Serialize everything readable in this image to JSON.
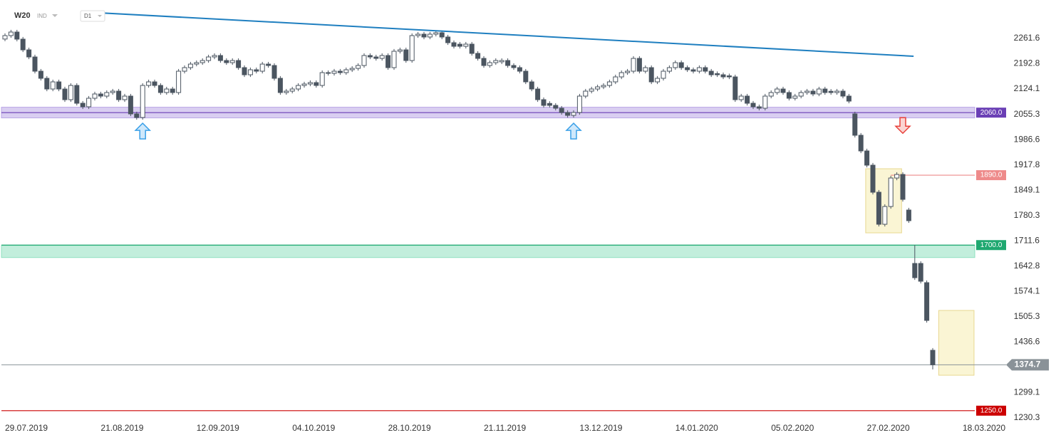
{
  "chart_data": {
    "type": "candlestick",
    "title": "W20",
    "market": "IND",
    "interval": "D1",
    "categories": [
      "29.07.2019",
      null,
      null,
      null,
      null,
      null,
      null,
      null,
      null,
      null,
      null,
      null,
      null,
      null,
      null,
      null,
      "21.08.2019",
      null,
      null,
      null,
      null,
      null,
      null,
      null,
      null,
      null,
      null,
      null,
      null,
      null,
      null,
      null,
      "12.09.2019",
      null,
      null,
      null,
      null,
      null,
      null,
      null,
      null,
      null,
      null,
      null,
      null,
      null,
      null,
      null,
      "04.10.2019",
      null,
      null,
      null,
      null,
      null,
      null,
      null,
      null,
      null,
      null,
      null,
      null,
      null,
      null,
      null,
      "28.10.2019",
      null,
      null,
      null,
      null,
      null,
      null,
      null,
      null,
      null,
      null,
      null,
      null,
      null,
      null,
      null,
      "21.11.2019",
      null,
      null,
      null,
      null,
      null,
      null,
      null,
      null,
      null,
      null,
      null,
      null,
      null,
      null,
      null,
      "13.12.2019",
      null,
      null,
      null,
      null,
      null,
      null,
      null,
      null,
      null,
      null,
      null,
      null,
      null,
      null,
      null,
      "14.01.2020",
      null,
      null,
      null,
      null,
      null,
      null,
      null,
      null,
      null,
      null,
      null,
      null,
      null,
      null,
      null,
      "05.02.2020",
      null,
      null,
      null,
      null,
      null,
      null,
      null,
      null,
      null,
      null,
      null,
      null,
      null,
      null,
      null,
      "27.02.2020",
      null,
      null,
      null,
      null,
      null,
      null,
      null,
      null,
      null,
      null,
      null,
      null,
      null,
      null,
      null,
      "18.03.2020"
    ],
    "open": [
      2260.0,
      2269.3,
      2279.0,
      2259.7,
      2230.6,
      2211.3,
      2172.6,
      2153.3,
      2124.2,
      2143.6,
      2124.2,
      2095.2,
      2133.9,
      2085.5,
      2075.9,
      2099.1,
      2110.7,
      2104.9,
      2114.6,
      2118.4,
      2095.2,
      2104.9,
      2056.5,
      2046.8,
      2133.9,
      2143.6,
      2133.9,
      2114.6,
      2124.2,
      2114.6,
      2172.6,
      2182.3,
      2191.9,
      2195.8,
      2201.6,
      2211.3,
      2215.2,
      2201.6,
      2195.8,
      2201.6,
      2182.3,
      2162.9,
      2176.5,
      2172.6,
      2191.9,
      2188.1,
      2153.3,
      2114.6,
      2118.4,
      2124.2,
      2133.9,
      2137.8,
      2141.6,
      2133.9,
      2168.7,
      2166.8,
      2172.6,
      2168.7,
      2176.5,
      2180.3,
      2188.1,
      2215.2,
      2211.3,
      2207.4,
      2215.2,
      2182.3,
      2226.8,
      2230.6,
      2201.6,
      2269.3,
      2273.2,
      2265.5,
      2273.2,
      2277.1,
      2265.5,
      2250.0,
      2246.0,
      2240.3,
      2246.1,
      2221.0,
      2207.4,
      2188.1,
      2195.8,
      2198.0,
      2201.6,
      2188.1,
      2182.3,
      2172.6,
      2143.6,
      2124.2,
      2095.2,
      2085.0,
      2079.7,
      2072.0,
      2060.4,
      2052.6,
      2060.4,
      2104.9,
      2118.4,
      2124.2,
      2130.0,
      2133.9,
      2143.6,
      2157.1,
      2168.7,
      2172.6,
      2207.4,
      2172.6,
      2182.3,
      2143.6,
      2153.3,
      2172.6,
      2182.3,
      2195.8,
      2182.3,
      2176.5,
      2172.6,
      2182.3,
      2172.6,
      2166.0,
      2162.9,
      2160.0,
      2157.1,
      2095.2,
      2104.9,
      2085.5,
      2075.9,
      2072.0,
      2104.9,
      2114.6,
      2124.2,
      2114.6,
      2099.1,
      2104.9,
      2114.6,
      2118.4,
      2110.7,
      2124.2,
      2118.0,
      2114.6,
      2118.4,
      2104.9,
      2056.5,
      1998.5,
      1955.9,
      1917.2,
      1843.7,
      1756.6,
      1804.9,
      1882.3,
      1892.0,
      1795.3,
      1650.1,
      1650.1,
      1597.9,
      1414.1,
      null,
      null,
      null,
      null,
      null
    ],
    "high": [
      2275.3,
      2285.0,
      2285.0,
      2265.7,
      2236.6,
      2217.3,
      2178.6,
      2159.3,
      2149.6,
      2149.6,
      2130.2,
      2139.9,
      2139.9,
      2091.5,
      2105.1,
      2116.7,
      2116.7,
      2120.6,
      2124.4,
      2124.4,
      2110.9,
      2110.9,
      2062.5,
      2139.9,
      2149.6,
      2149.6,
      2139.9,
      2130.2,
      2130.2,
      2178.6,
      2188.3,
      2197.9,
      2201.8,
      2207.6,
      2217.3,
      2221.2,
      2221.2,
      2207.6,
      2207.6,
      2207.6,
      2188.3,
      2182.5,
      2182.5,
      2197.9,
      2197.9,
      2194.1,
      2159.3,
      2124.4,
      2130.2,
      2139.9,
      2143.8,
      2147.6,
      2147.6,
      2174.7,
      2174.7,
      2178.6,
      2178.6,
      2182.5,
      2186.3,
      2194.1,
      2221.2,
      2221.2,
      2217.3,
      2221.2,
      2221.2,
      2232.8,
      2236.6,
      2236.6,
      2275.3,
      2279.2,
      2279.2,
      2279.2,
      2283.1,
      2283.1,
      2271.5,
      2256.0,
      2252.0,
      2252.1,
      2252.1,
      2227.0,
      2213.4,
      2201.8,
      2207.6,
      2207.6,
      2207.6,
      2194.1,
      2188.3,
      2178.6,
      2149.6,
      2130.2,
      2101.2,
      2091.0,
      2085.7,
      2078.0,
      2066.4,
      2066.4,
      2110.9,
      2124.4,
      2130.2,
      2136.0,
      2139.9,
      2149.6,
      2163.1,
      2174.7,
      2178.6,
      2213.4,
      2213.4,
      2188.3,
      2188.3,
      2159.3,
      2178.6,
      2188.3,
      2201.8,
      2201.8,
      2188.3,
      2182.5,
      2188.3,
      2188.3,
      2178.6,
      2172.0,
      2168.9,
      2166.0,
      2163.1,
      2110.9,
      2110.9,
      2091.5,
      2081.9,
      2110.9,
      2120.6,
      2130.2,
      2130.2,
      2120.6,
      2110.9,
      2120.6,
      2124.4,
      2124.4,
      2130.2,
      2130.2,
      2124.0,
      2124.4,
      2124.4,
      2110.9,
      2062.5,
      2004.5,
      1961.9,
      1923.2,
      1849.7,
      1810.9,
      1888.3,
      1898.0,
      1898.0,
      1801.3,
      1700.0,
      1656.1,
      1603.9,
      1420.1,
      null,
      null,
      null,
      null,
      null
    ],
    "low": [
      2254.0,
      2263.3,
      2253.7,
      2224.6,
      2205.3,
      2166.6,
      2147.3,
      2118.2,
      2118.2,
      2118.2,
      2089.2,
      2089.2,
      2079.5,
      2069.9,
      2069.9,
      2093.1,
      2098.9,
      2098.9,
      2108.6,
      2089.2,
      2089.2,
      2050.5,
      2040.8,
      2040.8,
      2127.9,
      2127.9,
      2108.6,
      2108.6,
      2108.6,
      2108.6,
      2166.6,
      2176.3,
      2185.9,
      2189.8,
      2195.6,
      2205.3,
      2195.6,
      2189.8,
      2189.8,
      2176.3,
      2156.9,
      2156.9,
      2166.6,
      2166.6,
      2182.1,
      2147.3,
      2108.6,
      2108.6,
      2112.4,
      2118.2,
      2127.9,
      2131.8,
      2127.9,
      2127.9,
      2160.8,
      2160.8,
      2162.7,
      2162.7,
      2170.5,
      2174.3,
      2182.1,
      2205.3,
      2201.4,
      2201.4,
      2176.3,
      2176.3,
      2220.8,
      2195.6,
      2195.6,
      2263.3,
      2259.5,
      2259.5,
      2267.2,
      2259.5,
      2244.0,
      2234.3,
      2234.3,
      2234.3,
      2215.0,
      2201.4,
      2182.1,
      2182.1,
      2189.8,
      2192.0,
      2182.1,
      2176.3,
      2166.6,
      2137.6,
      2118.2,
      2089.2,
      2073.7,
      2073.7,
      2066.0,
      2054.4,
      2046.6,
      2046.6,
      2054.4,
      2098.9,
      2112.4,
      2118.2,
      2124.0,
      2127.9,
      2137.6,
      2151.1,
      2162.7,
      2166.6,
      2166.6,
      2166.6,
      2137.6,
      2137.6,
      2147.3,
      2166.6,
      2176.3,
      2176.3,
      2170.5,
      2166.6,
      2166.6,
      2166.6,
      2156.9,
      2156.9,
      2151.1,
      2151.1,
      2089.2,
      2089.2,
      2079.5,
      2069.9,
      2066.0,
      2066.0,
      2098.9,
      2108.6,
      2108.6,
      2093.1,
      2093.1,
      2098.9,
      2108.6,
      2104.7,
      2104.7,
      2108.6,
      2108.6,
      2108.6,
      2098.9,
      2085.3,
      1992.5,
      1949.9,
      1911.2,
      1837.7,
      1750.6,
      1750.6,
      1798.9,
      1876.3,
      1818.3,
      1760.3,
      1605.4,
      1595.8,
      1489.3,
      1362.0,
      null,
      null,
      null,
      null,
      null
    ],
    "close": [
      2269.3,
      2279.0,
      2259.7,
      2230.6,
      2211.3,
      2172.6,
      2153.3,
      2124.2,
      2143.6,
      2124.2,
      2095.2,
      2133.9,
      2085.5,
      2075.9,
      2099.1,
      2110.7,
      2104.9,
      2114.6,
      2118.4,
      2095.2,
      2104.9,
      2056.5,
      2046.8,
      2133.9,
      2143.6,
      2133.9,
      2114.6,
      2124.2,
      2114.6,
      2172.6,
      2182.3,
      2191.9,
      2195.8,
      2201.6,
      2211.3,
      2215.2,
      2201.6,
      2195.8,
      2201.6,
      2182.3,
      2162.9,
      2176.5,
      2172.6,
      2191.9,
      2188.1,
      2153.3,
      2114.6,
      2118.4,
      2124.2,
      2133.9,
      2137.8,
      2141.6,
      2133.9,
      2168.7,
      2166.8,
      2172.6,
      2168.7,
      2176.5,
      2180.3,
      2188.1,
      2215.2,
      2211.3,
      2207.4,
      2215.2,
      2182.3,
      2226.8,
      2230.6,
      2201.6,
      2269.3,
      2273.2,
      2265.5,
      2273.2,
      2277.1,
      2265.5,
      2250.0,
      2240.3,
      2240.3,
      2246.1,
      2221.0,
      2207.4,
      2188.1,
      2195.8,
      2201.6,
      2201.6,
      2188.1,
      2182.3,
      2172.6,
      2143.6,
      2124.2,
      2095.2,
      2079.7,
      2079.7,
      2072.0,
      2060.4,
      2052.6,
      2060.4,
      2104.9,
      2118.4,
      2124.2,
      2130.0,
      2133.9,
      2143.6,
      2157.1,
      2168.7,
      2172.6,
      2207.4,
      2172.6,
      2182.3,
      2143.6,
      2153.3,
      2172.6,
      2182.3,
      2195.8,
      2182.3,
      2176.5,
      2172.6,
      2182.3,
      2172.6,
      2162.9,
      2162.9,
      2157.1,
      2157.1,
      2095.2,
      2104.9,
      2085.5,
      2075.9,
      2072.0,
      2104.9,
      2114.6,
      2124.2,
      2114.6,
      2099.1,
      2104.9,
      2114.6,
      2118.4,
      2110.7,
      2124.2,
      2114.6,
      2114.6,
      2118.4,
      2104.9,
      2091.3,
      1998.5,
      1955.9,
      1917.2,
      1843.7,
      1756.6,
      1804.9,
      1882.3,
      1892.0,
      1824.3,
      1766.3,
      1611.4,
      1601.8,
      1495.3,
      1374.7,
      null,
      null,
      null,
      null,
      null
    ],
    "up_color": "#ffffff",
    "down_color": "#4b5560",
    "ylim": [
      1220.6,
      2366.1
    ],
    "yticks": [
      2261.6,
      2192.8,
      2124.1,
      2055.3,
      1986.6,
      1917.8,
      1849.1,
      1780.3,
      1711.6,
      1642.8,
      1574.1,
      1505.3,
      1436.6,
      1299.1,
      1230.3
    ],
    "levels": [
      {
        "value": 2060.0,
        "label": "2060.0",
        "color": "#6a3fb5"
      },
      {
        "value": 1890.0,
        "label": "1890.0",
        "color": "#ee8a8a"
      },
      {
        "value": 1700.0,
        "label": "1700.0",
        "color": "#1fa870"
      },
      {
        "value": 1250.0,
        "label": "1250.0",
        "color": "#cc0000"
      }
    ],
    "zones": [
      {
        "range": [
          2045.7,
          2074.7
        ],
        "color": "#b9a6e6"
      },
      {
        "range": [
          1666.2,
          1699.1
        ],
        "color": "#8fe0c0"
      }
    ],
    "boxes": [
      {
        "x": [
          143.8,
          149.8
        ],
        "range": [
          1733.3,
          1907.5
        ],
        "color": "#f7eeb8"
      },
      {
        "x": [
          156.0,
          161.9
        ],
        "range": [
          1346.3,
          1522.4
        ],
        "color": "#f7eeb8"
      }
    ],
    "trendline": {
      "x": [
        13.5,
        151.8
      ],
      "y": [
        2333.2,
        2213.2
      ],
      "color": "#1f7fc0"
    },
    "signals": [
      {
        "x": 23,
        "y": 2008.0,
        "dir": "up",
        "color": "#3aa0e8"
      },
      {
        "x": 95,
        "y": 2008.0,
        "dir": "up",
        "color": "#3aa0e8"
      },
      {
        "x": 150,
        "y": 2027.0,
        "dir": "down",
        "color": "#e8403a"
      }
    ],
    "last_price": 1374.7,
    "last_price_color": "#8a9298"
  }
}
